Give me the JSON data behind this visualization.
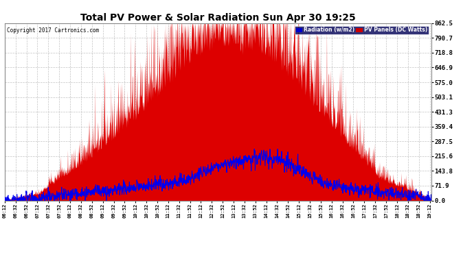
{
  "title": "Total PV Power & Solar Radiation Sun Apr 30 19:25",
  "copyright": "Copyright 2017 Cartronics.com",
  "legend_radiation": "Radiation (w/m2)",
  "legend_pv": "PV Panels (DC Watts)",
  "legend_radiation_bg": "#0000cc",
  "legend_pv_bg": "#cc0000",
  "ymax": 862.5,
  "ymin": 0.0,
  "yticks": [
    0.0,
    71.9,
    143.8,
    215.6,
    287.5,
    359.4,
    431.3,
    503.1,
    575.0,
    646.9,
    718.8,
    790.7,
    862.5
  ],
  "background_color": "#ffffff",
  "plot_bg": "#ffffff",
  "grid_color": "#bbbbbb",
  "pv_fill_color": "#dd0000",
  "radiation_line_color": "#0000ee",
  "tick_interval_min": 20,
  "figwidth": 6.9,
  "figheight": 3.75,
  "dpi": 100
}
